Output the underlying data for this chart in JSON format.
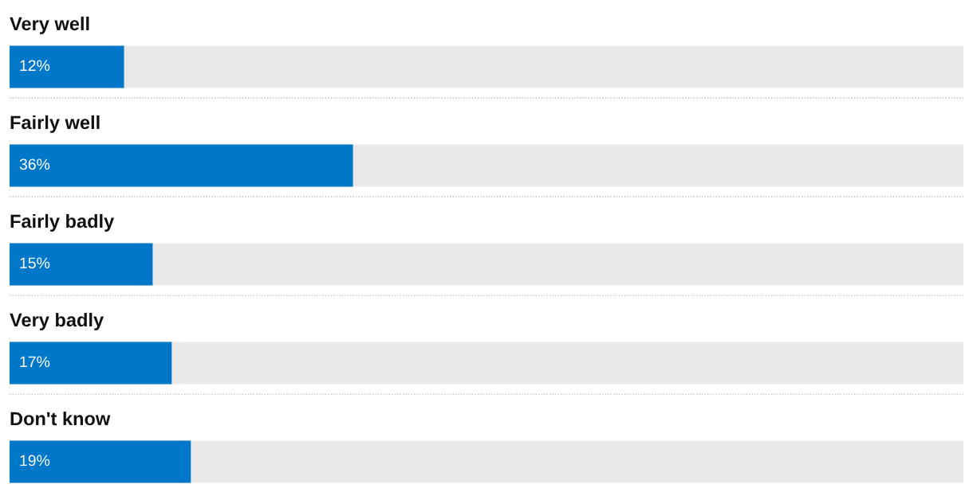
{
  "chart_data": {
    "type": "bar",
    "orientation": "horizontal",
    "categories": [
      "Very well",
      "Fairly well",
      "Fairly badly",
      "Very badly",
      "Don't know"
    ],
    "values": [
      12,
      36,
      15,
      17,
      19
    ],
    "color": "#0077c8",
    "xlim": [
      0,
      100
    ],
    "data_labels": true,
    "value_labels": [
      "12%",
      "36%",
      "15%",
      "17%",
      "19%"
    ]
  }
}
